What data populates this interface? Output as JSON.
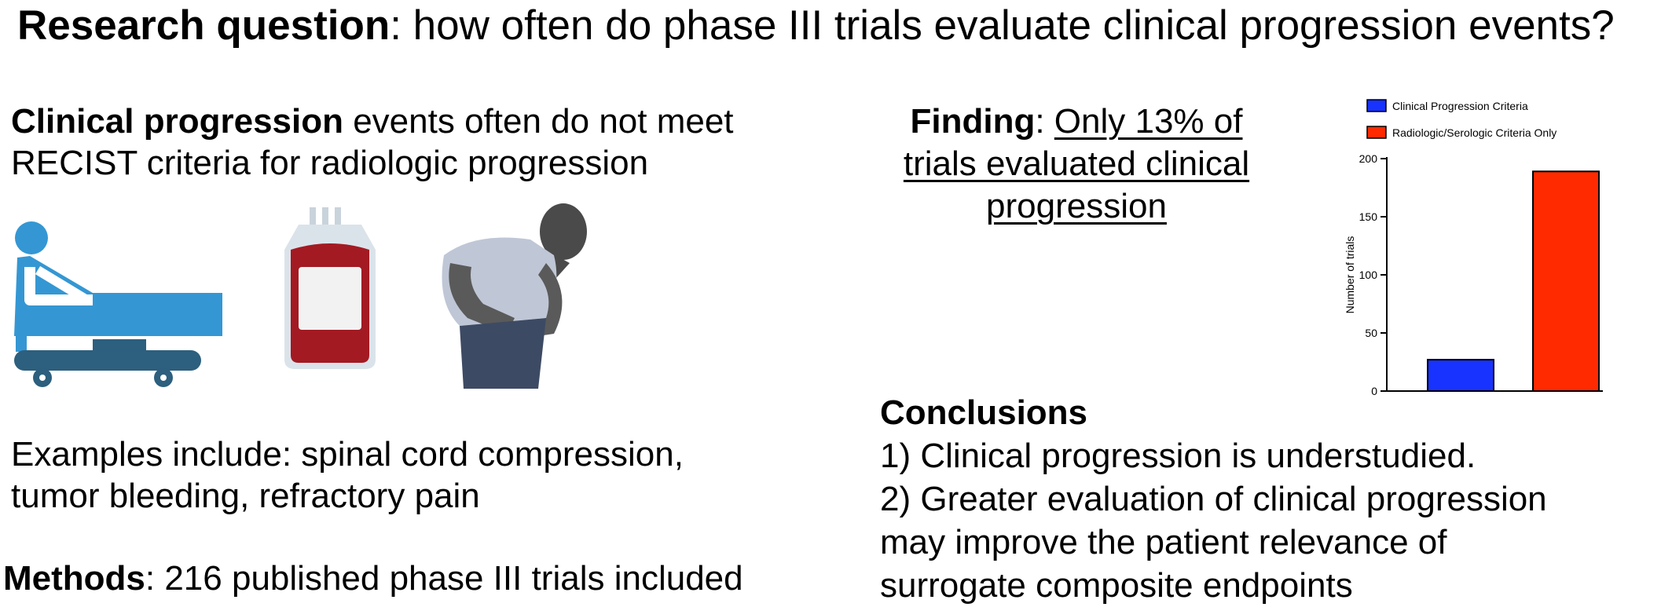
{
  "header": {
    "title_bold": "Research question",
    "title_rest": ": how often do phase III trials evaluate clinical progression events?"
  },
  "left": {
    "intro_bold": "Clinical progression",
    "intro_rest": " events often do not meet",
    "intro_line2": "RECIST criteria for radiologic progression",
    "examples_line1": "Examples include: spinal cord compression,",
    "examples_line2": "tumor bleeding, refractory pain",
    "methods_bold": "Methods",
    "methods_rest": ": 216 published phase III trials included",
    "icons": [
      "hospital-bed-icon",
      "blood-bag-icon",
      "person-in-pain-icon"
    ]
  },
  "finding": {
    "label": "Finding",
    "colon": ": ",
    "text_line1": "Only 13% of",
    "text_line2": "trials evaluated clinical",
    "text_line3": "progression"
  },
  "conclusions": {
    "heading": "Conclusions",
    "line1": "1) Clinical progression is understudied.",
    "line2": "2) Greater evaluation of clinical progression",
    "line3": "may improve the patient relevance of",
    "line4": "surrogate composite endpoints"
  },
  "chart_data": {
    "type": "bar",
    "categories": [
      "Clinical Progression Criteria",
      "Radiologic/Serologic Criteria Only"
    ],
    "values": [
      27,
      189
    ],
    "colors": [
      "#1833ff",
      "#ff2a00"
    ],
    "ylabel": "Number of trials",
    "ylim": [
      0,
      200
    ],
    "yticks": [
      0,
      50,
      100,
      150,
      200
    ],
    "legend": [
      "Clinical Progression Criteria",
      "Radiologic/Serologic Criteria Only"
    ],
    "legend_position": "top",
    "grid": false
  }
}
